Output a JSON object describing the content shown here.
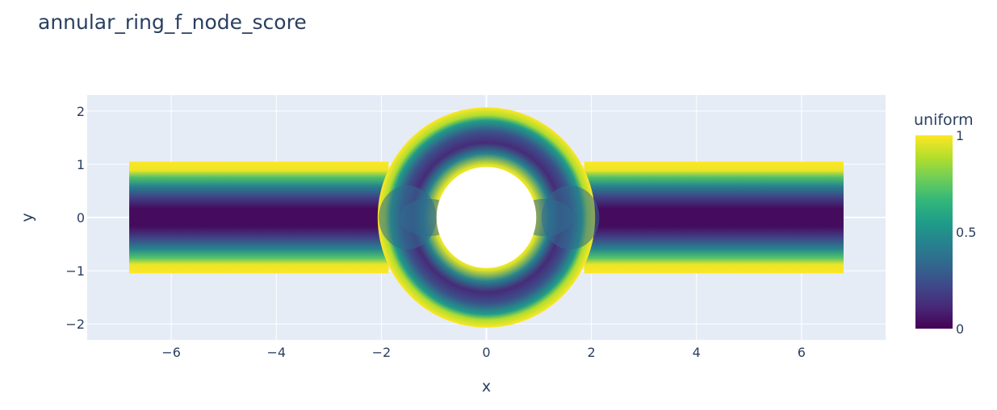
{
  "chart_data": {
    "type": "heatmap",
    "title": "annular_ring_f_node_score",
    "xlabel": "x",
    "ylabel": "y",
    "xlim": [
      -7.6,
      7.6
    ],
    "ylim": [
      -2.3,
      2.3
    ],
    "x_ticks": [
      -6,
      -4,
      -2,
      0,
      2,
      4,
      6
    ],
    "y_ticks": [
      -2,
      -1,
      0,
      1,
      2
    ],
    "x_tick_labels": [
      "−6",
      "−4",
      "−2",
      "0",
      "2",
      "4",
      "6"
    ],
    "y_tick_labels": [
      "−2",
      "−1",
      "0",
      "1",
      "2"
    ],
    "geometry": {
      "channel_x_range": [
        -6.8,
        6.8
      ],
      "channel_y_range": [
        -1.05,
        1.05
      ],
      "ring_center": [
        0,
        0
      ],
      "ring_outer_radius": 2.07,
      "ring_inner_radius": 0.95
    },
    "colorbar": {
      "title": "uniform",
      "range": [
        0,
        1
      ],
      "ticks": [
        0,
        0.5,
        1
      ],
      "tick_labels": [
        "0",
        "0.5",
        "1"
      ],
      "colorscale": "Viridis",
      "stops": [
        "#440154",
        "#482878",
        "#3e4989",
        "#31688e",
        "#26828e",
        "#1f9e89",
        "#35b779",
        "#6ece58",
        "#b5de2b",
        "#fde725"
      ]
    },
    "grid": true,
    "plot_bgcolor": "#e5ecf6"
  }
}
